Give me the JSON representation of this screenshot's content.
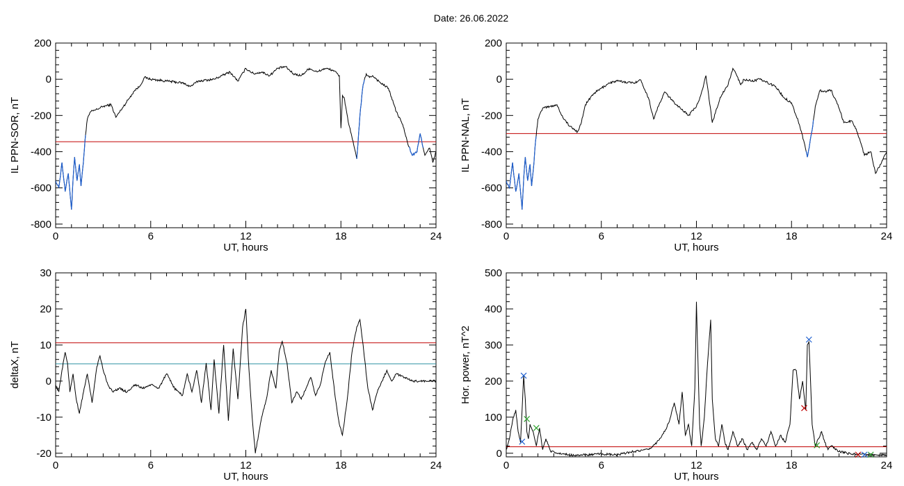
{
  "header": {
    "date_label": "Date:",
    "date_value": "26.06.2022"
  },
  "chart_data": [
    {
      "id": "p1",
      "type": "line",
      "ylabel": "IL PPN-SOR, nT",
      "xlabel": "UT, hours",
      "xlim": [
        0,
        24
      ],
      "ylim": [
        -820,
        200
      ],
      "xticks": [
        0,
        6,
        12,
        18,
        24
      ],
      "yticks": [
        -800,
        -600,
        -400,
        -200,
        0,
        200
      ],
      "threshold": {
        "value": -345,
        "color": "#c00000"
      },
      "highlight_color": "#1e5fcf",
      "highlight_ranges": [
        [
          0,
          1.9
        ],
        [
          19.0,
          19.5
        ],
        [
          22.3,
          23.2
        ]
      ],
      "series": [
        {
          "color": "#000000",
          "x": [
            0,
            0.2,
            0.4,
            0.6,
            0.8,
            1.0,
            1.1,
            1.2,
            1.35,
            1.5,
            1.6,
            1.75,
            1.85,
            2.0,
            2.2,
            2.5,
            3.0,
            3.5,
            3.8,
            4.2,
            4.6,
            5.0,
            5.3,
            5.6,
            6.0,
            7.0,
            8.0,
            8.5,
            9.0,
            10.0,
            10.5,
            11.0,
            11.5,
            12.0,
            12.5,
            13.0,
            13.5,
            14.0,
            14.5,
            15.0,
            15.5,
            16.0,
            16.5,
            17.0,
            17.5,
            17.9,
            18.0,
            18.1,
            18.2,
            18.3,
            18.5,
            18.8,
            19.0,
            19.2,
            19.4,
            19.6,
            19.8,
            20.0,
            20.5,
            21.0,
            21.5,
            21.9,
            22.2,
            22.5,
            22.8,
            23.0,
            23.3,
            23.6,
            23.8,
            24.0
          ],
          "y": [
            -560,
            -600,
            -460,
            -620,
            -520,
            -720,
            -550,
            -430,
            -560,
            -470,
            -590,
            -460,
            -340,
            -220,
            -180,
            -170,
            -150,
            -140,
            -210,
            -160,
            -110,
            -60,
            -40,
            10,
            0,
            -10,
            -20,
            -40,
            -10,
            0,
            20,
            40,
            -10,
            60,
            30,
            40,
            20,
            60,
            70,
            30,
            20,
            60,
            40,
            60,
            50,
            20,
            -270,
            -90,
            -100,
            -150,
            -250,
            -360,
            -440,
            -200,
            -30,
            30,
            10,
            20,
            -20,
            -50,
            -180,
            -250,
            -350,
            -420,
            -400,
            -300,
            -420,
            -380,
            -460,
            -400
          ]
        }
      ]
    },
    {
      "id": "p2",
      "type": "line",
      "ylabel": "IL PPN-NAL, nT",
      "xlabel": "UT, hours",
      "xlim": [
        0,
        24
      ],
      "ylim": [
        -820,
        200
      ],
      "xticks": [
        0,
        6,
        12,
        18,
        24
      ],
      "yticks": [
        -800,
        -600,
        -400,
        -200,
        0,
        200
      ],
      "threshold": {
        "value": -300,
        "color": "#c00000"
      },
      "highlight_color": "#1e5fcf",
      "highlight_ranges": [
        [
          0,
          1.9
        ],
        [
          18.9,
          19.4
        ]
      ],
      "series": [
        {
          "color": "#000000",
          "x": [
            0,
            0.2,
            0.4,
            0.6,
            0.8,
            1.0,
            1.1,
            1.2,
            1.35,
            1.5,
            1.6,
            1.75,
            1.85,
            2.0,
            2.3,
            2.8,
            3.2,
            3.5,
            4.0,
            4.5,
            4.7,
            5.0,
            5.5,
            6.0,
            6.5,
            7.0,
            8.0,
            8.5,
            9.0,
            9.3,
            9.6,
            10.0,
            10.5,
            11.0,
            11.5,
            12.0,
            12.3,
            12.6,
            13.0,
            13.5,
            14.0,
            14.3,
            14.5,
            14.8,
            15.0,
            15.5,
            16.0,
            16.5,
            17.0,
            17.5,
            18.0,
            18.5,
            18.8,
            19.0,
            19.3,
            19.5,
            19.8,
            20.0,
            20.5,
            21.0,
            21.3,
            21.8,
            22.0,
            22.3,
            22.6,
            23.0,
            23.3,
            23.6,
            24.0
          ],
          "y": [
            -560,
            -600,
            -460,
            -620,
            -520,
            -720,
            -550,
            -430,
            -560,
            -470,
            -590,
            -460,
            -340,
            -220,
            -160,
            -150,
            -140,
            -200,
            -260,
            -290,
            -250,
            -140,
            -80,
            -50,
            -20,
            -10,
            -20,
            -5,
            -110,
            -220,
            -150,
            -70,
            -120,
            -160,
            -200,
            -150,
            -80,
            20,
            -240,
            -100,
            -30,
            60,
            30,
            -30,
            0,
            -10,
            0,
            -20,
            -40,
            -100,
            -130,
            -250,
            -350,
            -430,
            -280,
            -150,
            -60,
            -70,
            -60,
            -160,
            -240,
            -230,
            -260,
            -330,
            -420,
            -400,
            -520,
            -470,
            -400
          ]
        }
      ]
    },
    {
      "id": "p3",
      "type": "line",
      "ylabel": "deltaX, nT",
      "xlabel": "UT, hours",
      "xlim": [
        0,
        24
      ],
      "ylim": [
        -21,
        30
      ],
      "xticks": [
        0,
        6,
        12,
        18,
        24
      ],
      "yticks": [
        -20,
        -10,
        0,
        10,
        20,
        30
      ],
      "thresholds": [
        {
          "value": 10.6,
          "color": "#c00000"
        },
        {
          "value": 4.8,
          "color": "#2a8fa0"
        }
      ],
      "series": [
        {
          "color": "#000000",
          "x": [
            0,
            0.2,
            0.4,
            0.6,
            0.75,
            0.9,
            1.1,
            1.3,
            1.5,
            1.8,
            2.0,
            2.3,
            2.6,
            2.8,
            3.0,
            3.3,
            3.6,
            4.0,
            4.5,
            5.0,
            5.5,
            6.0,
            6.5,
            7.0,
            7.5,
            8.0,
            8.3,
            8.6,
            8.9,
            9.2,
            9.5,
            9.8,
            10.0,
            10.3,
            10.6,
            10.9,
            11.2,
            11.5,
            11.8,
            12.0,
            12.2,
            12.4,
            12.6,
            12.8,
            13.0,
            13.3,
            13.6,
            13.9,
            14.1,
            14.3,
            14.6,
            14.9,
            15.2,
            15.5,
            15.8,
            16.1,
            16.4,
            16.7,
            17.0,
            17.3,
            17.6,
            17.9,
            18.1,
            18.4,
            18.7,
            19.0,
            19.2,
            19.4,
            19.7,
            20.0,
            20.3,
            20.6,
            20.9,
            21.2,
            21.5,
            22.0,
            22.5,
            23.0,
            23.5,
            24.0
          ],
          "y": [
            -1,
            -3,
            3,
            8,
            5,
            -3,
            2,
            -5,
            -9,
            -2,
            2,
            -6,
            4,
            7,
            3,
            -1,
            -3,
            -2,
            -3,
            -1,
            -2,
            -1,
            -2,
            2,
            -2,
            -4,
            2,
            -3,
            3,
            -6,
            5,
            -8,
            6,
            -9,
            10,
            -11,
            9,
            -5,
            15,
            20,
            3,
            -10,
            -20,
            -15,
            -10,
            -5,
            3,
            -2,
            8,
            11,
            5,
            -6,
            -3,
            -5,
            -2,
            1,
            -4,
            -1,
            5,
            8,
            -3,
            -12,
            -15,
            -5,
            8,
            15,
            17,
            10,
            -2,
            -8,
            -3,
            0,
            3,
            0,
            2,
            1,
            0,
            0,
            0,
            0
          ]
        }
      ]
    },
    {
      "id": "p4",
      "type": "line",
      "ylabel": "Hor. power, nT^2",
      "xlabel": "UT, hours",
      "xlim": [
        0,
        24
      ],
      "ylim": [
        -10,
        500
      ],
      "xticks": [
        0,
        6,
        12,
        18,
        24
      ],
      "yticks": [
        0,
        100,
        200,
        300,
        400,
        500
      ],
      "threshold": {
        "value": 18,
        "color": "#c00000"
      },
      "series": [
        {
          "color": "#000000",
          "x": [
            0,
            0.2,
            0.4,
            0.6,
            0.75,
            0.9,
            1.0,
            1.1,
            1.2,
            1.3,
            1.4,
            1.5,
            1.7,
            1.9,
            2.1,
            2.3,
            2.5,
            2.8,
            3.2,
            4.0,
            5.0,
            6.0,
            7.0,
            8.0,
            9.0,
            9.5,
            10.0,
            10.3,
            10.6,
            10.9,
            11.1,
            11.3,
            11.5,
            11.7,
            11.9,
            12.0,
            12.1,
            12.2,
            12.3,
            12.5,
            12.7,
            12.9,
            13.0,
            13.2,
            13.4,
            13.6,
            13.8,
            14.0,
            14.3,
            14.6,
            14.9,
            15.2,
            15.5,
            15.8,
            16.1,
            16.4,
            16.7,
            17.0,
            17.3,
            17.6,
            17.9,
            18.1,
            18.3,
            18.5,
            18.7,
            18.9,
            19.0,
            19.1,
            19.2,
            19.3,
            19.5,
            19.7,
            19.9,
            20.1,
            20.3,
            20.5,
            21.0,
            21.5,
            22.0,
            22.5,
            23.0,
            23.5,
            24.0
          ],
          "y": [
            10,
            40,
            90,
            120,
            60,
            30,
            120,
            215,
            150,
            60,
            40,
            80,
            60,
            20,
            70,
            10,
            40,
            5,
            0,
            -5,
            -5,
            -2,
            -5,
            5,
            10,
            30,
            60,
            90,
            140,
            80,
            170,
            50,
            80,
            20,
            180,
            420,
            250,
            80,
            20,
            100,
            250,
            370,
            150,
            40,
            20,
            80,
            30,
            10,
            60,
            20,
            40,
            10,
            30,
            10,
            40,
            20,
            60,
            20,
            50,
            30,
            80,
            230,
            230,
            150,
            200,
            120,
            300,
            310,
            200,
            80,
            20,
            40,
            60,
            30,
            10,
            20,
            5,
            0,
            -2,
            -2,
            -5,
            -5,
            -5
          ]
        }
      ],
      "markers": [
        {
          "x": 1.1,
          "y": 215,
          "symbol": "x",
          "color": "#1e5fcf"
        },
        {
          "x": 1.0,
          "y": 32,
          "symbol": "x",
          "color": "#1e5fcf"
        },
        {
          "x": 1.3,
          "y": 95,
          "symbol": "x",
          "color": "#2ca02c"
        },
        {
          "x": 1.9,
          "y": 70,
          "symbol": "x",
          "color": "#2ca02c"
        },
        {
          "x": 18.8,
          "y": 125,
          "symbol": "x",
          "color": "#c00000"
        },
        {
          "x": 19.1,
          "y": 315,
          "symbol": "x",
          "color": "#1e5fcf"
        },
        {
          "x": 19.6,
          "y": 22,
          "symbol": "x",
          "color": "#2ca02c"
        },
        {
          "x": 22.2,
          "y": -4,
          "symbol": "x",
          "color": "#c00000"
        },
        {
          "x": 22.6,
          "y": -4,
          "symbol": "x",
          "color": "#1e5fcf"
        },
        {
          "x": 23.0,
          "y": -4,
          "symbol": "x",
          "color": "#2ca02c"
        }
      ]
    }
  ]
}
